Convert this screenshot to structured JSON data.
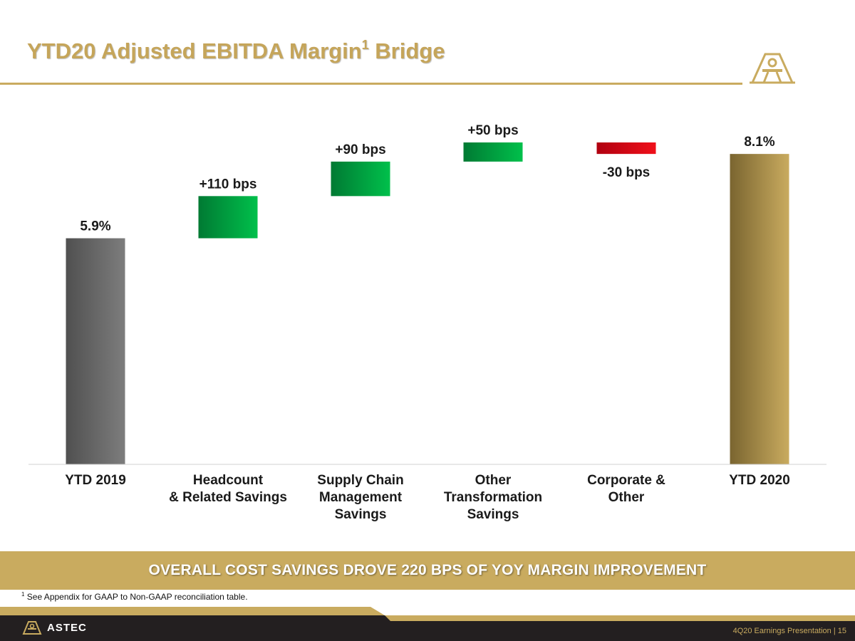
{
  "slide": {
    "title_main": "YTD20 Adjusted EBITDA Margin",
    "title_sup": "1",
    "title_end": " Bridge",
    "banner": "OVERALL COST SAVINGS DROVE 220 BPS OF YOY MARGIN IMPROVEMENT",
    "footnote_sup": "1",
    "footnote": " See Appendix for GAAP to Non-GAAP reconciliation table.",
    "brand": "ASTEC",
    "page_info": "4Q20 Earnings Presentation |  15"
  },
  "colors": {
    "gold": "#c9ab5f",
    "title_gold": "#c5a55a",
    "gray_bar": "#6b6b6b",
    "green_bar": "#00b140",
    "red_bar": "#e3000f",
    "dark_footer": "#231f20"
  },
  "chart_data": {
    "type": "waterfall",
    "unit": "%",
    "categories": [
      [
        "YTD 2019"
      ],
      [
        "Headcount",
        "& Related Savings"
      ],
      [
        "Supply Chain",
        "Management",
        "Savings"
      ],
      [
        "Other",
        "Transformation",
        "Savings"
      ],
      [
        "Corporate &",
        "Other"
      ],
      [
        "YTD 2020"
      ]
    ],
    "steps": [
      {
        "kind": "total",
        "value": 5.9,
        "label": "5.9%",
        "color": "gray"
      },
      {
        "kind": "delta",
        "value": 1.1,
        "label": "+110 bps",
        "color": "green"
      },
      {
        "kind": "delta",
        "value": 0.9,
        "label": "+90 bps",
        "color": "green"
      },
      {
        "kind": "delta",
        "value": 0.5,
        "label": "+50 bps",
        "color": "green"
      },
      {
        "kind": "delta",
        "value": -0.3,
        "label": "-30 bps",
        "color": "red"
      },
      {
        "kind": "total",
        "value": 8.1,
        "label": "8.1%",
        "color": "gold"
      }
    ],
    "ylim": [
      0,
      8.4
    ],
    "legend": "none",
    "grid": false
  }
}
